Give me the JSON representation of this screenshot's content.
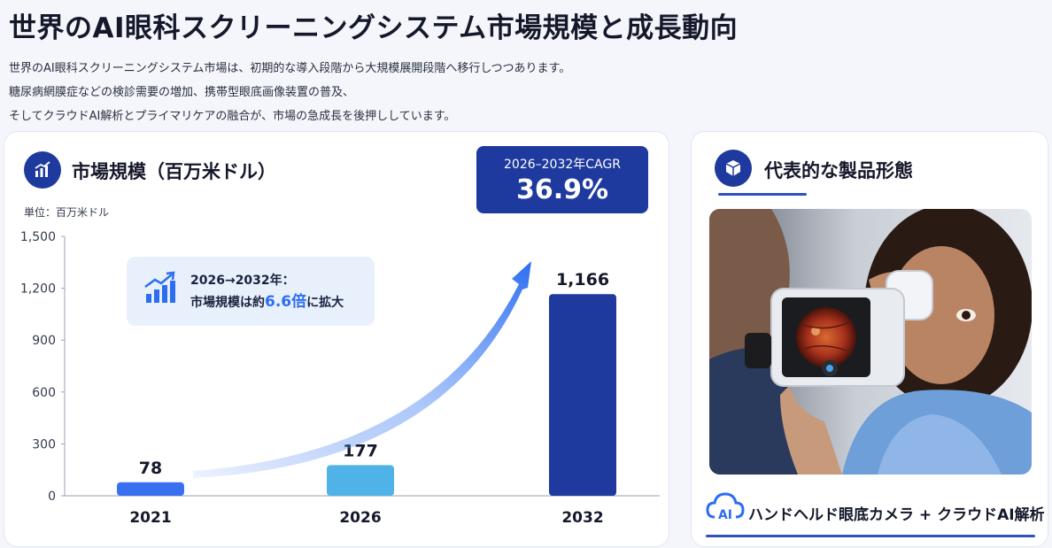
{
  "page": {
    "title": "世界のAI眼科スクリーニングシステム市場規模と成長動向",
    "intro": [
      "世界のAI眼科スクリーニングシステム市場は、初期的な導入段階から大規模展開段階へ移行しつつあります。",
      "糖尿病網膜症などの検診需要の増加、携帯型眼底画像装置の普及、",
      "そしてクラウドAI解析とプライマリケアの融合が、市場の急成長を後押ししています。"
    ]
  },
  "market": {
    "section_title": "市場規模（百万米ドル）",
    "unit_label": "単位：百万米ドル",
    "cagr_label": "2026–2032年CAGR",
    "cagr_value": "36.9%",
    "callout_line1": "2026→2032年：",
    "callout_prefix": "市場規模は約",
    "callout_highlight": "6.6倍",
    "callout_suffix": "に拡大"
  },
  "chart_data": {
    "type": "bar",
    "categories": [
      "2021",
      "2026",
      "2032"
    ],
    "values": [
      78,
      177,
      1166
    ],
    "value_labels": [
      "78",
      "177",
      "1,166"
    ],
    "yticks": [
      "0",
      "300",
      "600",
      "900",
      "1,200",
      "1,500"
    ],
    "ytick_values": [
      0,
      300,
      600,
      900,
      1200,
      1500
    ],
    "ylim": [
      0,
      1500
    ],
    "ylabel": "単位：百万米ドル",
    "bar_colors": [
      "#3a6ff0",
      "#4fb3e8",
      "#1f3a9e"
    ],
    "grid": false
  },
  "product": {
    "section_title": "代表的な製品形態",
    "label": "ハンドヘルド眼底カメラ + クラウドAI解析",
    "icon_text": "AI"
  },
  "colors": {
    "accent": "#1f3a9e",
    "bright_blue": "#2d6df2",
    "light_blue": "#4fb3e8"
  }
}
